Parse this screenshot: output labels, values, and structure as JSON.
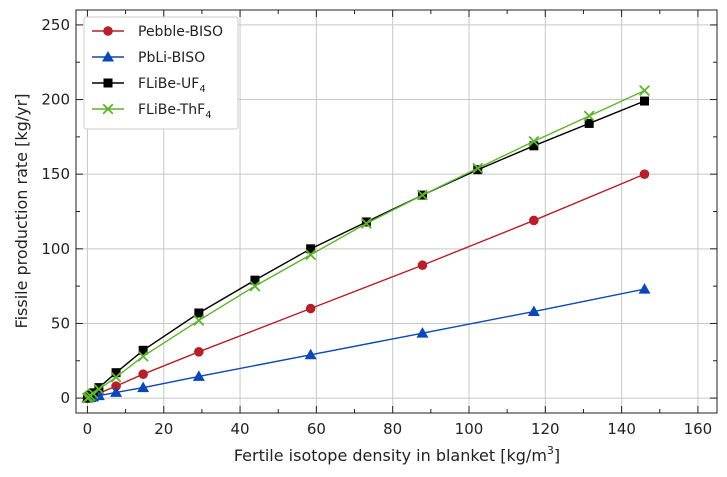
{
  "chart_data": {
    "type": "line",
    "xlabel": "Fertile isotope density in blanket [kg/m",
    "xlabel_sup": "3",
    "xlabel_end": "]",
    "ylabel": "Fissile production rate [kg/yr]",
    "xlim": [
      -3,
      165
    ],
    "ylim": [
      -10,
      260
    ],
    "xticks": [
      0,
      20,
      40,
      60,
      80,
      100,
      120,
      140,
      160
    ],
    "yticks": [
      0,
      50,
      100,
      150,
      200,
      250
    ],
    "grid": true,
    "legend_position": "top-left",
    "series": [
      {
        "name": "Pebble-BISO",
        "color": "#b5202a",
        "marker": "circle",
        "x": [
          0,
          0.3,
          0.75,
          1.5,
          3,
          7.5,
          14.6,
          29.2,
          58.5,
          87.8,
          117,
          146
        ],
        "y": [
          0,
          0.3,
          0.8,
          1.6,
          3.2,
          8,
          16,
          31,
          60,
          89,
          119,
          150
        ]
      },
      {
        "name": "PbLi-BISO",
        "color": "#0b47b5",
        "marker": "triangle",
        "x": [
          0,
          0.3,
          0.75,
          1.5,
          3,
          7.5,
          14.6,
          29.2,
          58.5,
          87.8,
          117,
          146
        ],
        "y": [
          0,
          0.2,
          0.4,
          0.8,
          1.6,
          3.8,
          7,
          14.5,
          29,
          43.5,
          58,
          73
        ]
      },
      {
        "name": "FLiBe-UF",
        "name_sub": "4",
        "color": "#000000",
        "marker": "square",
        "x": [
          0,
          0.3,
          0.75,
          1.5,
          3,
          7.5,
          14.6,
          29.2,
          43.9,
          58.5,
          73.1,
          87.8,
          102.3,
          117,
          131.5,
          146
        ],
        "y": [
          0,
          0.8,
          2,
          3.5,
          7,
          17,
          32,
          57,
          79,
          100,
          118,
          136,
          153,
          169,
          184,
          199
        ]
      },
      {
        "name": "FLiBe-ThF",
        "name_sub": "4",
        "color": "#5db32b",
        "marker": "x",
        "x": [
          0,
          0.3,
          0.75,
          1.5,
          3,
          7.5,
          14.6,
          29.2,
          43.9,
          58.5,
          73.1,
          87.8,
          102.3,
          117,
          131.5,
          146
        ],
        "y": [
          0,
          0.6,
          1.5,
          3,
          6,
          14,
          28,
          52,
          75,
          96,
          117,
          136,
          154,
          172,
          189,
          206
        ]
      }
    ]
  }
}
